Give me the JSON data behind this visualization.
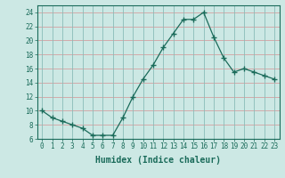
{
  "x": [
    0,
    1,
    2,
    3,
    4,
    5,
    6,
    7,
    8,
    9,
    10,
    11,
    12,
    13,
    14,
    15,
    16,
    17,
    18,
    19,
    20,
    21,
    22,
    23
  ],
  "y": [
    10,
    9,
    8.5,
    8,
    7.5,
    6.5,
    6.5,
    6.5,
    9,
    12,
    14.5,
    16.5,
    19,
    21,
    23,
    23,
    24,
    20.5,
    17.5,
    15.5,
    16,
    15.5,
    15,
    14.5
  ],
  "line_color": "#1a6b5a",
  "marker": "D",
  "marker_size": 2.0,
  "background_color": "#cce8e4",
  "grid_color": "#b8d8d4",
  "grid_color_minor": "#e8c8c8",
  "xlabel": "Humidex (Indice chaleur)",
  "xlim": [
    -0.5,
    23.5
  ],
  "ylim": [
    6,
    25
  ],
  "yticks": [
    6,
    8,
    10,
    12,
    14,
    16,
    18,
    20,
    22,
    24
  ],
  "xticks": [
    0,
    1,
    2,
    3,
    4,
    5,
    6,
    7,
    8,
    9,
    10,
    11,
    12,
    13,
    14,
    15,
    16,
    17,
    18,
    19,
    20,
    21,
    22,
    23
  ],
  "tick_color": "#1a6b5a",
  "label_fontsize": 5.5,
  "xlabel_fontsize": 7.0,
  "linewidth": 0.9
}
